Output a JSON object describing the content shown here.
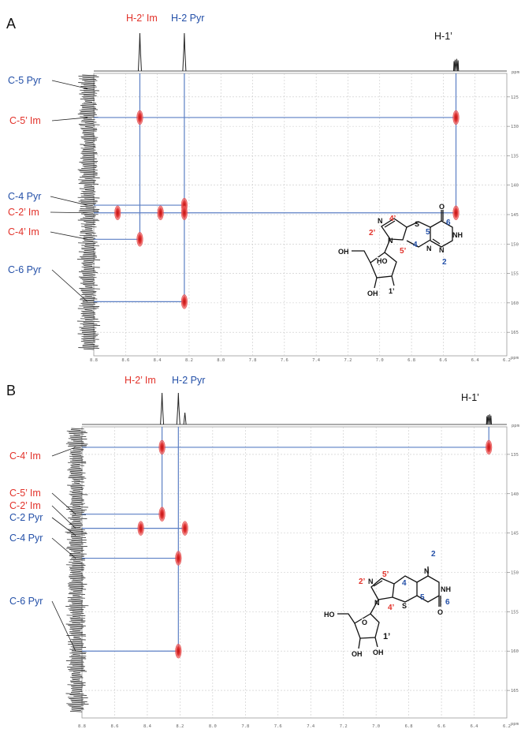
{
  "colors": {
    "red": "#e2322a",
    "blue": "#2450a8",
    "line": "#5b7fc4",
    "cross": "#e23a3a"
  },
  "panel_a": {
    "letter": "A",
    "top_labels": [
      {
        "text": "H-2’ Im",
        "color": "red"
      },
      {
        "text": "H-2 Pyr",
        "color": "blue"
      },
      {
        "text": "H-1’",
        "color": "black"
      }
    ],
    "left_labels": [
      {
        "text": "C-5 Pyr",
        "color": "blue"
      },
      {
        "text": "C-5’ Im",
        "color": "red"
      },
      {
        "text": "C-4 Pyr",
        "color": "blue"
      },
      {
        "text": "C-2’ Im",
        "color": "red"
      },
      {
        "text": "C-4’ Im",
        "color": "red"
      },
      {
        "text": "C-6 Pyr",
        "color": "blue"
      }
    ],
    "x_ticks": [
      "8.8",
      "8.6",
      "8.4",
      "8.2",
      "8.0",
      "7.8",
      "7.6",
      "7.4",
      "7.2",
      "7.0",
      "6.8",
      "6.6",
      "6.4",
      "6.2"
    ],
    "y_ticks": [
      "125",
      "130",
      "135",
      "140",
      "145",
      "150",
      "155",
      "160",
      "165"
    ],
    "unit": "ppm"
  },
  "panel_b": {
    "letter": "B",
    "top_labels": [
      {
        "text": "H-2’ Im",
        "color": "red"
      },
      {
        "text": "H-2 Pyr",
        "color": "blue"
      },
      {
        "text": "H-1’",
        "color": "black"
      }
    ],
    "left_labels": [
      {
        "text": "C-4’ Im",
        "color": "red"
      },
      {
        "text": "C-5’ Im",
        "color": "red"
      },
      {
        "text": "C-2’ Im",
        "color": "red"
      },
      {
        "text": "C-2 Pyr",
        "color": "blue"
      },
      {
        "text": "C-4 Pyr",
        "color": "blue"
      },
      {
        "text": "C-6 Pyr",
        "color": "blue"
      }
    ],
    "x_ticks": [
      "8.8",
      "8.6",
      "8.4",
      "8.2",
      "8.0",
      "7.8",
      "7.6",
      "7.4",
      "7.2",
      "7.0",
      "6.8",
      "6.6",
      "6.4",
      "6.2"
    ],
    "y_ticks": [
      "135",
      "140",
      "145",
      "150",
      "155",
      "160",
      "165"
    ],
    "unit": "ppm"
  },
  "structure_a": {
    "labels": [
      "4’",
      "2’",
      "5’",
      "5",
      "4",
      "6",
      "2",
      "O",
      "NH",
      "N",
      "N",
      "S",
      "N",
      "O",
      "HO",
      "OH",
      "OH",
      "1’"
    ]
  },
  "structure_b": {
    "labels": [
      "2",
      "NH",
      "6",
      "O",
      "4",
      "5",
      "5’",
      "2’",
      "4’",
      "N",
      "N",
      "N",
      "S",
      "N",
      "O",
      "HO",
      "OH",
      "OH",
      "1’"
    ]
  },
  "chart_data": [
    {
      "type": "heatmap",
      "title": "",
      "xlabel": "ppm",
      "ylabel": "ppm",
      "xlim": [
        8.8,
        6.2
      ],
      "ylim": [
        121,
        169
      ],
      "x_ticks": [
        8.8,
        8.6,
        8.4,
        8.2,
        8.0,
        7.8,
        7.6,
        7.4,
        7.2,
        7.0,
        6.8,
        6.6,
        6.4,
        6.2
      ],
      "y_ticks": [
        125,
        130,
        135,
        140,
        145,
        150,
        155,
        160,
        165
      ],
      "grid": true,
      "proton_peaks": [
        {
          "label": "H-2’ Im",
          "x": 8.51
        },
        {
          "label": "H-2 Pyr",
          "x": 8.23
        },
        {
          "label": "H-1’",
          "x": 6.52
        }
      ],
      "cross_peaks": [
        {
          "x": 8.51,
          "y": 128.5
        },
        {
          "x": 6.52,
          "y": 128.5
        },
        {
          "x": 8.23,
          "y": 143.4
        },
        {
          "x": 8.23,
          "y": 144.7
        },
        {
          "x": 8.65,
          "y": 144.7
        },
        {
          "x": 8.38,
          "y": 144.7
        },
        {
          "x": 6.52,
          "y": 144.7
        },
        {
          "x": 8.51,
          "y": 149.2
        },
        {
          "x": 8.23,
          "y": 159.8
        }
      ],
      "carbon_assignments": [
        {
          "label": "C-5 Pyr",
          "y": 123.6
        },
        {
          "label": "C-5’ Im",
          "y": 128.5
        },
        {
          "label": "C-4 Pyr",
          "y": 143.4
        },
        {
          "label": "C-2’ Im",
          "y": 144.7
        },
        {
          "label": "C-4’ Im",
          "y": 149.2
        },
        {
          "label": "C-6 Pyr",
          "y": 159.8
        }
      ]
    },
    {
      "type": "heatmap",
      "title": "",
      "xlabel": "ppm",
      "ylabel": "ppm",
      "xlim": [
        8.8,
        6.2
      ],
      "ylim": [
        131.5,
        168.5
      ],
      "x_ticks": [
        8.8,
        8.6,
        8.4,
        8.2,
        8.0,
        7.8,
        7.6,
        7.4,
        7.2,
        7.0,
        6.8,
        6.6,
        6.4,
        6.2
      ],
      "y_ticks": [
        135,
        140,
        145,
        150,
        155,
        160,
        165
      ],
      "grid": true,
      "proton_peaks": [
        {
          "label": "H-2’ Im",
          "x": 8.31
        },
        {
          "label": "H-2 Pyr",
          "x": 8.21
        },
        {
          "label": "H-1’",
          "x": 6.31
        }
      ],
      "cross_peaks": [
        {
          "x": 8.31,
          "y": 134.1
        },
        {
          "x": 6.31,
          "y": 134.1
        },
        {
          "x": 8.31,
          "y": 142.6
        },
        {
          "x": 8.44,
          "y": 144.4
        },
        {
          "x": 8.17,
          "y": 144.4
        },
        {
          "x": 8.21,
          "y": 148.2
        },
        {
          "x": 8.21,
          "y": 160.0
        }
      ],
      "carbon_assignments": [
        {
          "label": "C-4’ Im",
          "y": 134.1
        },
        {
          "label": "C-5’ Im",
          "y": 142.6
        },
        {
          "label": "C-2’ Im",
          "y": 144.4
        },
        {
          "label": "C-2 Pyr",
          "y": 145.3
        },
        {
          "label": "C-4 Pyr",
          "y": 148.2
        },
        {
          "label": "C-6 Pyr",
          "y": 160.0
        }
      ]
    }
  ]
}
